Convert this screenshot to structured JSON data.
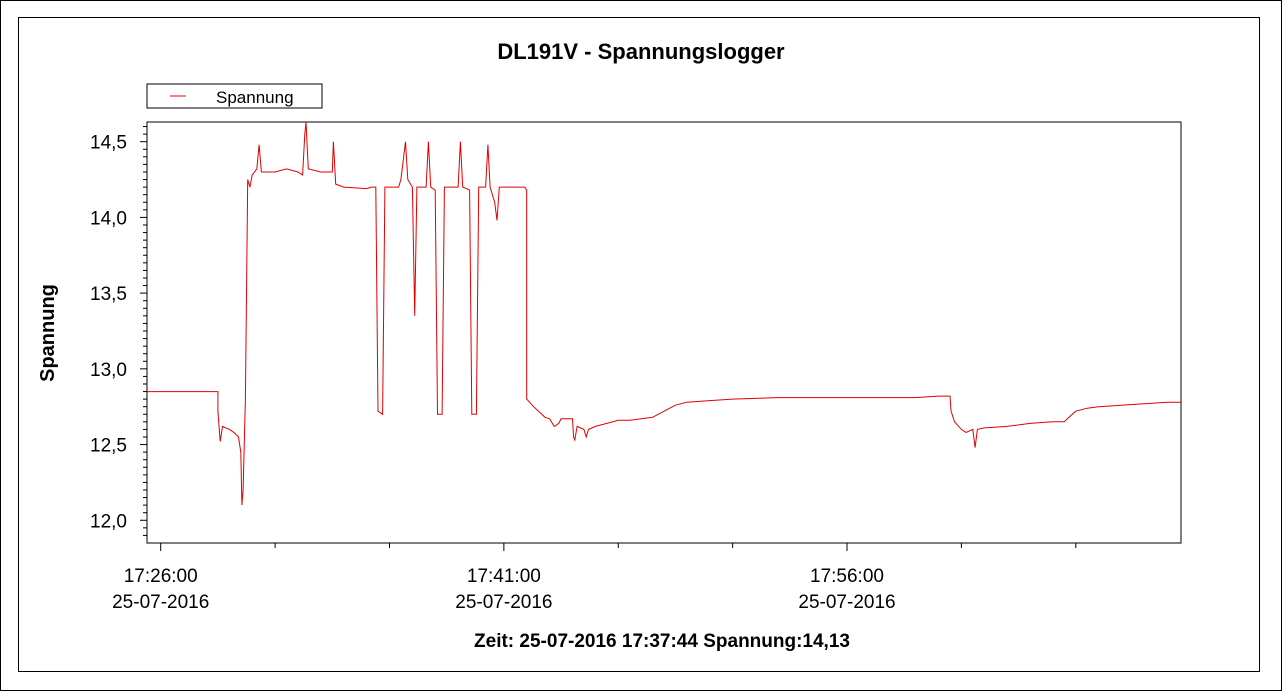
{
  "chart_data": {
    "type": "line",
    "title": "DL191V - Spannungslogger",
    "xlabel": "",
    "ylabel": "Spannung",
    "status_line": "Zeit: 25-07-2016 17:37:44 Spannung:14,13",
    "legend": {
      "label": "Spannung",
      "placement": "top-left"
    },
    "ylim": [
      11.85,
      14.63
    ],
    "xlim": [
      -0.6,
      44.6
    ],
    "x_unit": "minutes after 17:26:00 on 25-07-2016",
    "y_ticks": [
      {
        "value": 12.0,
        "label": "12,0"
      },
      {
        "value": 12.5,
        "label": "12,5"
      },
      {
        "value": 13.0,
        "label": "13,0"
      },
      {
        "value": 13.5,
        "label": "13,5"
      },
      {
        "value": 14.0,
        "label": "14,0"
      },
      {
        "value": 14.5,
        "label": "14,5"
      }
    ],
    "x_ticks": [
      {
        "value": 0,
        "time": "17:26:00",
        "date": "25-07-2016"
      },
      {
        "value": 15,
        "time": "17:41:00",
        "date": "25-07-2016"
      },
      {
        "value": 30,
        "time": "17:56:00",
        "date": "25-07-2016"
      }
    ],
    "x_minor_ticks": [
      5,
      10,
      20,
      25,
      35,
      40
    ],
    "grid": false,
    "series": [
      {
        "name": "Spannung",
        "color": "#e00000",
        "points": [
          [
            -0.6,
            12.85
          ],
          [
            2.5,
            12.85
          ],
          [
            2.5,
            12.72
          ],
          [
            2.6,
            12.52
          ],
          [
            2.7,
            12.62
          ],
          [
            3.0,
            12.6
          ],
          [
            3.2,
            12.58
          ],
          [
            3.4,
            12.55
          ],
          [
            3.5,
            12.45
          ],
          [
            3.55,
            12.1
          ],
          [
            3.6,
            12.2
          ],
          [
            3.7,
            12.8
          ],
          [
            3.8,
            14.25
          ],
          [
            3.9,
            14.2
          ],
          [
            4.0,
            14.28
          ],
          [
            4.2,
            14.32
          ],
          [
            4.3,
            14.48
          ],
          [
            4.4,
            14.3
          ],
          [
            5.0,
            14.3
          ],
          [
            5.5,
            14.32
          ],
          [
            6.0,
            14.3
          ],
          [
            6.2,
            14.28
          ],
          [
            6.3,
            14.55
          ],
          [
            6.35,
            14.63
          ],
          [
            6.45,
            14.32
          ],
          [
            7.0,
            14.3
          ],
          [
            7.5,
            14.3
          ],
          [
            7.55,
            14.5
          ],
          [
            7.65,
            14.22
          ],
          [
            8.0,
            14.2
          ],
          [
            9.0,
            14.19
          ],
          [
            9.2,
            14.2
          ],
          [
            9.4,
            14.2
          ],
          [
            9.5,
            12.72
          ],
          [
            9.7,
            12.7
          ],
          [
            9.8,
            14.2
          ],
          [
            10.4,
            14.2
          ],
          [
            10.5,
            14.25
          ],
          [
            10.7,
            14.5
          ],
          [
            10.8,
            14.25
          ],
          [
            11.0,
            14.2
          ],
          [
            11.1,
            13.35
          ],
          [
            11.2,
            14.2
          ],
          [
            11.6,
            14.2
          ],
          [
            11.7,
            14.5
          ],
          [
            11.8,
            14.2
          ],
          [
            12.0,
            14.18
          ],
          [
            12.1,
            12.7
          ],
          [
            12.3,
            12.7
          ],
          [
            12.4,
            14.2
          ],
          [
            13.0,
            14.2
          ],
          [
            13.1,
            14.5
          ],
          [
            13.2,
            14.2
          ],
          [
            13.5,
            14.18
          ],
          [
            13.6,
            12.7
          ],
          [
            13.8,
            12.7
          ],
          [
            13.9,
            14.2
          ],
          [
            14.2,
            14.2
          ],
          [
            14.3,
            14.48
          ],
          [
            14.4,
            14.2
          ],
          [
            14.6,
            14.1
          ],
          [
            14.7,
            13.98
          ],
          [
            14.8,
            14.2
          ],
          [
            15.5,
            14.2
          ],
          [
            15.9,
            14.2
          ],
          [
            16.0,
            14.18
          ],
          [
            16.0,
            12.8
          ],
          [
            16.3,
            12.75
          ],
          [
            16.8,
            12.68
          ],
          [
            17.0,
            12.67
          ],
          [
            17.2,
            12.62
          ],
          [
            17.4,
            12.64
          ],
          [
            17.5,
            12.67
          ],
          [
            18.0,
            12.67
          ],
          [
            18.05,
            12.55
          ],
          [
            18.1,
            12.53
          ],
          [
            18.2,
            12.62
          ],
          [
            18.5,
            12.6
          ],
          [
            18.6,
            12.55
          ],
          [
            18.7,
            12.6
          ],
          [
            19.0,
            12.62
          ],
          [
            19.5,
            12.64
          ],
          [
            20.0,
            12.66
          ],
          [
            20.5,
            12.66
          ],
          [
            21.0,
            12.67
          ],
          [
            21.5,
            12.68
          ],
          [
            22.0,
            12.72
          ],
          [
            22.5,
            12.76
          ],
          [
            23.0,
            12.78
          ],
          [
            24.0,
            12.79
          ],
          [
            25.0,
            12.8
          ],
          [
            27.0,
            12.81
          ],
          [
            30.0,
            12.81
          ],
          [
            33.0,
            12.81
          ],
          [
            34.0,
            12.82
          ],
          [
            34.5,
            12.82
          ],
          [
            34.55,
            12.72
          ],
          [
            34.7,
            12.65
          ],
          [
            35.0,
            12.6
          ],
          [
            35.2,
            12.58
          ],
          [
            35.5,
            12.6
          ],
          [
            35.6,
            12.48
          ],
          [
            35.7,
            12.6
          ],
          [
            36.0,
            12.61
          ],
          [
            37.0,
            12.62
          ],
          [
            38.0,
            12.64
          ],
          [
            39.0,
            12.65
          ],
          [
            39.5,
            12.65
          ],
          [
            39.7,
            12.68
          ],
          [
            40.0,
            12.72
          ],
          [
            40.5,
            12.74
          ],
          [
            41.0,
            12.75
          ],
          [
            42.0,
            12.76
          ],
          [
            43.0,
            12.77
          ],
          [
            44.0,
            12.78
          ],
          [
            44.6,
            12.78
          ]
        ]
      }
    ]
  }
}
